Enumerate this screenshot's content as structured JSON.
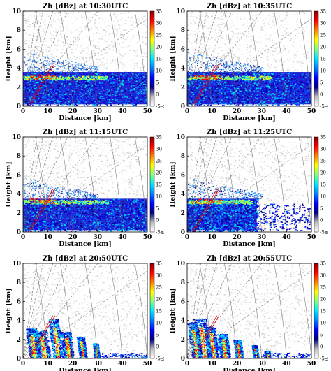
{
  "figure": {
    "shared": {
      "xlabel": "Distance [km]",
      "ylabel": "Height [km]",
      "x_ticks": [
        "0",
        "10",
        "20",
        "30",
        "40",
        "50"
      ],
      "y_ticks": [
        "0",
        "2",
        "4",
        "6",
        "8",
        "10"
      ],
      "colorbar_ticks": [
        "35",
        "30",
        "25",
        "20",
        "15",
        "10",
        "5",
        "0",
        "-5"
      ],
      "colorbar_min_label": "-5≤",
      "colorbar_colors": [
        "#ffffff",
        "#bdbdbd",
        "#00007f",
        "#0000ff",
        "#0080ff",
        "#00e5ff",
        "#7fff7f",
        "#ffff00",
        "#ff8000",
        "#ff0000",
        "#8b0000"
      ]
    }
  },
  "chart_data": [
    {
      "type": "heatmap",
      "title": "Zh [dBz] at 10:30UTC",
      "xlabel": "Distance [km]",
      "ylabel": "Height [km]",
      "xlim": [
        0,
        50
      ],
      "ylim": [
        0,
        10
      ],
      "colorbar_range": [
        -5,
        35
      ],
      "bright_band_height_km": 3.0,
      "max_echo_top_km": 3.6,
      "grid": false
    },
    {
      "type": "heatmap",
      "title": "Zh [dBz] at 10:35UTC",
      "xlabel": "Distance [km]",
      "ylabel": "Height [km]",
      "xlim": [
        0,
        50
      ],
      "ylim": [
        0,
        10
      ],
      "colorbar_range": [
        -5,
        35
      ],
      "bright_band_height_km": 3.0,
      "max_echo_top_km": 3.6,
      "grid": false
    },
    {
      "type": "heatmap",
      "title": "Zh [dBz] at 11:15UTC",
      "xlabel": "Distance [km]",
      "ylabel": "Height [km]",
      "xlim": [
        0,
        50
      ],
      "ylim": [
        0,
        10
      ],
      "colorbar_range": [
        -5,
        35
      ],
      "bright_band_height_km": 3.2,
      "max_echo_top_km": 3.5,
      "grid": false
    },
    {
      "type": "heatmap",
      "title": "Zh [dBz] at 11:25UTC",
      "xlabel": "Distance [km]",
      "ylabel": "Height [km]",
      "xlim": [
        0,
        50
      ],
      "ylim": [
        0,
        10
      ],
      "colorbar_range": [
        -5,
        35
      ],
      "bright_band_height_km": 3.2,
      "max_echo_top_km": 3.5,
      "grid": false
    },
    {
      "type": "heatmap",
      "title": "Zh [dBz] at 20:50UTC",
      "xlabel": "Distance [km]",
      "ylabel": "Height [km]",
      "xlim": [
        0,
        50
      ],
      "ylim": [
        0,
        10
      ],
      "colorbar_range": [
        -5,
        35
      ],
      "convective_core_x_km": [
        2,
        30
      ],
      "max_echo_top_km": 4.2,
      "grid": false
    },
    {
      "type": "heatmap",
      "title": "Zh [dBz] at 20:55UTC",
      "xlabel": "Distance [km]",
      "ylabel": "Height [km]",
      "xlim": [
        0,
        50
      ],
      "ylim": [
        0,
        10
      ],
      "colorbar_range": [
        -5,
        35
      ],
      "convective_core_x_km": [
        1,
        32
      ],
      "max_echo_top_km": 4.2,
      "grid": false
    }
  ]
}
